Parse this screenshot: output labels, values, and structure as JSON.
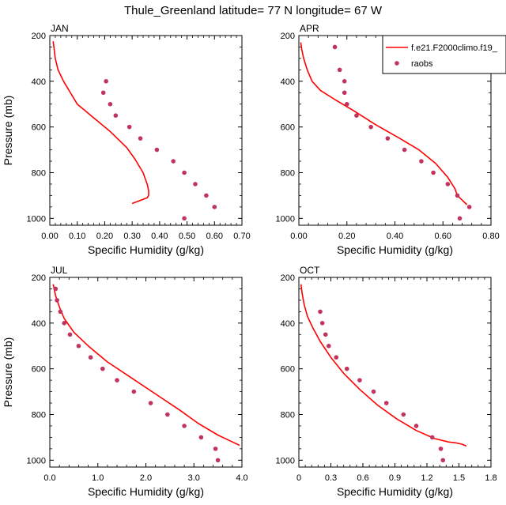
{
  "title": "Thule_Greenland  latitude= 77 N longitude= 67 W",
  "colors": {
    "model": "#ff0000",
    "obs": "#c0345e",
    "axis": "#000000"
  },
  "legend": {
    "model_label": "f.e21.F2000climo.f19_",
    "obs_label": "raobs",
    "placement": "top-right of APR panel"
  },
  "chart_data": [
    {
      "type": "line",
      "panel": "JAN",
      "xlabel": "Specific Humidity (g/kg)",
      "ylabel": "Pressure (mb)",
      "xlim": [
        0,
        0.7
      ],
      "ylim": [
        200,
        1030
      ],
      "y_inverted": true,
      "xticks": [
        "0.00",
        "0.10",
        "0.20",
        "0.30",
        "0.40",
        "0.50",
        "0.60",
        "0.70"
      ],
      "yticks": [
        "200",
        "400",
        "600",
        "800",
        "1000"
      ],
      "series": [
        {
          "kind": "line",
          "x": [
            0.012,
            0.015,
            0.02,
            0.03,
            0.05,
            0.07,
            0.1,
            0.16,
            0.22,
            0.28,
            0.31,
            0.34,
            0.355,
            0.36,
            0.36,
            0.355,
            0.3
          ],
          "y": [
            225,
            250,
            300,
            350,
            400,
            440,
            500,
            560,
            620,
            690,
            740,
            800,
            850,
            880,
            900,
            910,
            935
          ]
        },
        {
          "kind": "scatter",
          "x": [
            0.205,
            0.195,
            0.22,
            0.24,
            0.29,
            0.33,
            0.39,
            0.45,
            0.49,
            0.53,
            0.57,
            0.6,
            0.49
          ],
          "y": [
            400,
            450,
            500,
            550,
            600,
            650,
            700,
            750,
            800,
            850,
            900,
            950,
            1000
          ]
        }
      ]
    },
    {
      "type": "line",
      "panel": "APR",
      "xlabel": "Specific Humidity (g/kg)",
      "ylabel": "",
      "xlim": [
        0,
        0.8
      ],
      "ylim": [
        200,
        1030
      ],
      "y_inverted": true,
      "xticks": [
        "0.00",
        "0.20",
        "0.40",
        "0.60",
        "0.80"
      ],
      "yticks": [
        "200",
        "400",
        "600",
        "800",
        "1000"
      ],
      "series": [
        {
          "kind": "line",
          "x": [
            0.008,
            0.012,
            0.02,
            0.035,
            0.055,
            0.09,
            0.15,
            0.23,
            0.32,
            0.42,
            0.5,
            0.57,
            0.62,
            0.65,
            0.66,
            0.68,
            0.7
          ],
          "y": [
            230,
            260,
            300,
            350,
            400,
            440,
            480,
            530,
            590,
            650,
            700,
            760,
            820,
            870,
            900,
            920,
            940
          ]
        },
        {
          "kind": "scatter",
          "x": [
            0.15,
            0.17,
            0.19,
            0.19,
            0.2,
            0.24,
            0.3,
            0.37,
            0.44,
            0.51,
            0.56,
            0.62,
            0.66,
            0.71,
            0.67
          ],
          "y": [
            250,
            350,
            400,
            450,
            500,
            550,
            600,
            650,
            700,
            750,
            800,
            850,
            900,
            950,
            1000
          ]
        }
      ]
    },
    {
      "type": "line",
      "panel": "JUL",
      "xlabel": "Specific Humidity (g/kg)",
      "ylabel": "Pressure (mb)",
      "xlim": [
        0,
        4.0
      ],
      "ylim": [
        200,
        1030
      ],
      "y_inverted": true,
      "xticks": [
        "0.0",
        "1.0",
        "2.0",
        "3.0",
        "4.0"
      ],
      "yticks": [
        "200",
        "400",
        "600",
        "800",
        "1000"
      ],
      "series": [
        {
          "kind": "line",
          "x": [
            0.07,
            0.12,
            0.2,
            0.3,
            0.5,
            0.8,
            1.2,
            1.7,
            2.2,
            2.7,
            3.1,
            3.5,
            3.8,
            3.95
          ],
          "y": [
            230,
            280,
            330,
            380,
            440,
            500,
            570,
            640,
            710,
            780,
            840,
            890,
            920,
            935
          ]
        },
        {
          "kind": "scatter",
          "x": [
            0.12,
            0.15,
            0.22,
            0.3,
            0.42,
            0.6,
            0.85,
            1.1,
            1.4,
            1.75,
            2.1,
            2.45,
            2.8,
            3.15,
            3.45,
            3.5
          ],
          "y": [
            250,
            300,
            350,
            400,
            450,
            500,
            550,
            600,
            650,
            700,
            750,
            800,
            850,
            900,
            950,
            1000
          ]
        }
      ]
    },
    {
      "type": "line",
      "panel": "OCT",
      "xlabel": "Specific Humidity (g/kg)",
      "ylabel": "",
      "xlim": [
        0,
        1.8
      ],
      "ylim": [
        200,
        1030
      ],
      "y_inverted": true,
      "xticks": [
        "0",
        "0.3",
        "0.6",
        "0.9",
        "1.2",
        "1.5",
        "1.8"
      ],
      "yticks": [
        "200",
        "400",
        "600",
        "800",
        "1000"
      ],
      "series": [
        {
          "kind": "line",
          "x": [
            0.02,
            0.03,
            0.05,
            0.08,
            0.13,
            0.2,
            0.3,
            0.42,
            0.57,
            0.74,
            0.92,
            1.1,
            1.27,
            1.4,
            1.48,
            1.53,
            1.57
          ],
          "y": [
            230,
            270,
            320,
            370,
            420,
            480,
            550,
            620,
            690,
            760,
            820,
            870,
            905,
            920,
            925,
            930,
            938
          ]
        },
        {
          "kind": "scatter",
          "x": [
            0.2,
            0.22,
            0.25,
            0.28,
            0.35,
            0.45,
            0.57,
            0.7,
            0.82,
            0.98,
            1.1,
            1.25,
            1.33,
            1.35
          ],
          "y": [
            350,
            400,
            450,
            500,
            550,
            600,
            650,
            700,
            750,
            800,
            850,
            900,
            950,
            1000
          ]
        }
      ]
    }
  ]
}
